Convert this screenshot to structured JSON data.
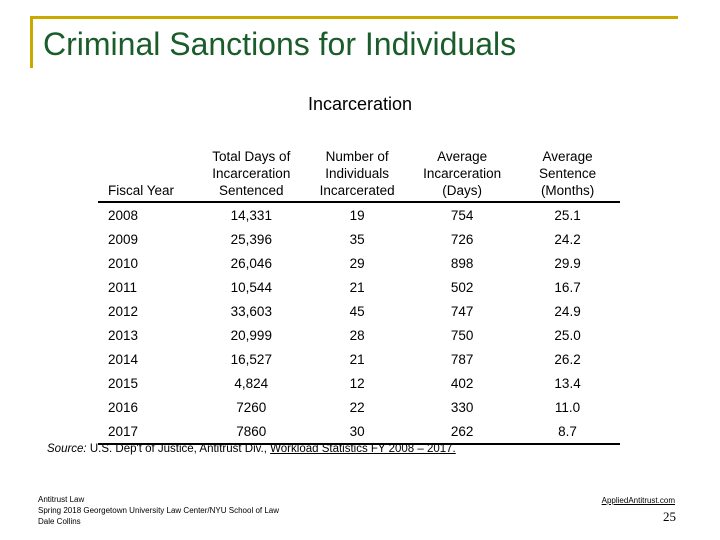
{
  "slide": {
    "title": "Criminal Sanctions for Individuals"
  },
  "table": {
    "title": "Incarceration",
    "headers": [
      "Fiscal Year",
      "Total Days of Incarceration Sentenced",
      "Number of Individuals Incarcerated",
      "Average Incarceration (Days)",
      "Average Sentence (Months)"
    ],
    "rows": [
      [
        "2008",
        "14,331",
        "19",
        "754",
        "25.1"
      ],
      [
        "2009",
        "25,396",
        "35",
        "726",
        "24.2"
      ],
      [
        "2010",
        "26,046",
        "29",
        "898",
        "29.9"
      ],
      [
        "2011",
        "10,544",
        "21",
        "502",
        "16.7"
      ],
      [
        "2012",
        "33,603",
        "45",
        "747",
        "24.9"
      ],
      [
        "2013",
        "20,999",
        "28",
        "750",
        "25.0"
      ],
      [
        "2014",
        "16,527",
        "21",
        "787",
        "26.2"
      ],
      [
        "2015",
        "4,824",
        "12",
        "402",
        "13.4"
      ],
      [
        "2016",
        "7260",
        "22",
        "330",
        "11.0"
      ],
      [
        "2017",
        "7860",
        "30",
        "262",
        "8.7"
      ]
    ]
  },
  "source": {
    "label": "Source:",
    "text": " U.S. Dep't of Justice, Antitrust Div., ",
    "link": "Workload Statistics FY 2008 – 2017."
  },
  "footer": {
    "line1": "Antitrust Law",
    "line2": "Spring 2018  Georgetown University Law Center/NYU School of Law",
    "line3": "Dale Collins",
    "site": "AppliedAntitrust.com",
    "page": "25"
  },
  "colors": {
    "accent": "#c9a800",
    "title": "#1a5c2a"
  }
}
